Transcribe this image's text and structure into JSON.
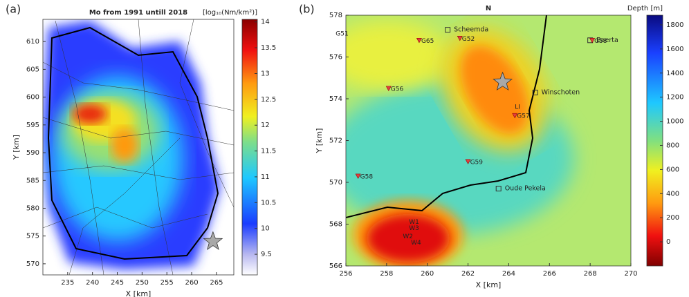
{
  "chart_data": [
    {
      "type": "heatmap",
      "panel": "(a)",
      "title": "Mo from 1991 untill 2018",
      "colorbar_label": "[log₁₀(Nm/km²)]",
      "xlabel": "X [km]",
      "ylabel": "Y [km]",
      "xlim": [
        230,
        268.5
      ],
      "xticks": [
        235,
        240,
        245,
        250,
        255,
        260,
        265
      ],
      "ylim": [
        568,
        614
      ],
      "yticks": [
        570,
        575,
        580,
        585,
        590,
        595,
        600,
        605,
        610
      ],
      "clim": [
        9.1,
        14.05
      ],
      "cticks": [
        9.5,
        10,
        10.5,
        11,
        11.5,
        12,
        12.5,
        13,
        13.5,
        14
      ],
      "markers": [
        {
          "x": 264.3,
          "y": 574
        }
      ]
    },
    {
      "type": "heatmap",
      "panel": "(b)",
      "title": "N",
      "colorbar_label": "Depth [m]",
      "xlabel": "X [km]",
      "ylabel": "Y [km]",
      "xlim": [
        256,
        270
      ],
      "xticks": [
        256,
        258,
        260,
        262,
        264,
        266,
        268,
        270
      ],
      "ylim": [
        566,
        578
      ],
      "yticks": [
        566,
        568,
        570,
        572,
        574,
        576,
        578
      ],
      "clim": [
        -200,
        1880
      ],
      "cticks": [
        0,
        200,
        400,
        600,
        800,
        1000,
        1200,
        1400,
        1600,
        1800
      ],
      "markers": [
        {
          "x": 263.7,
          "y": 574.8
        }
      ],
      "towns": [
        {
          "name": "Scheemda",
          "x": 261.0,
          "y": 577.3
        },
        {
          "name": "Winschoten",
          "x": 265.3,
          "y": 574.3
        },
        {
          "name": "Oude Pekela",
          "x": 263.5,
          "y": 569.7
        },
        {
          "name": "Baerta",
          "x": 268.0,
          "y": 576.8
        }
      ],
      "stations": [
        {
          "name": "G65",
          "x": 259.6,
          "y": 576.8
        },
        {
          "name": "G52",
          "x": 261.6,
          "y": 576.9
        },
        {
          "name": "G56",
          "x": 258.1,
          "y": 574.5
        },
        {
          "name": "G57",
          "x": 264.3,
          "y": 573.2
        },
        {
          "name": "G59",
          "x": 262.0,
          "y": 571.0
        },
        {
          "name": "G58",
          "x": 256.6,
          "y": 570.3
        },
        {
          "name": "G58",
          "x": 268.1,
          "y": 576.8
        }
      ],
      "labels": [
        {
          "text": "G51",
          "x": 255.5,
          "y": 577.1
        },
        {
          "text": "LI",
          "x": 264.3,
          "y": 573.6
        },
        {
          "text": "W1",
          "x": 259.1,
          "y": 568.1
        },
        {
          "text": "W3",
          "x": 259.1,
          "y": 567.8
        },
        {
          "text": "W2",
          "x": 258.8,
          "y": 567.4
        },
        {
          "text": "W4",
          "x": 259.2,
          "y": 567.1
        }
      ]
    }
  ]
}
